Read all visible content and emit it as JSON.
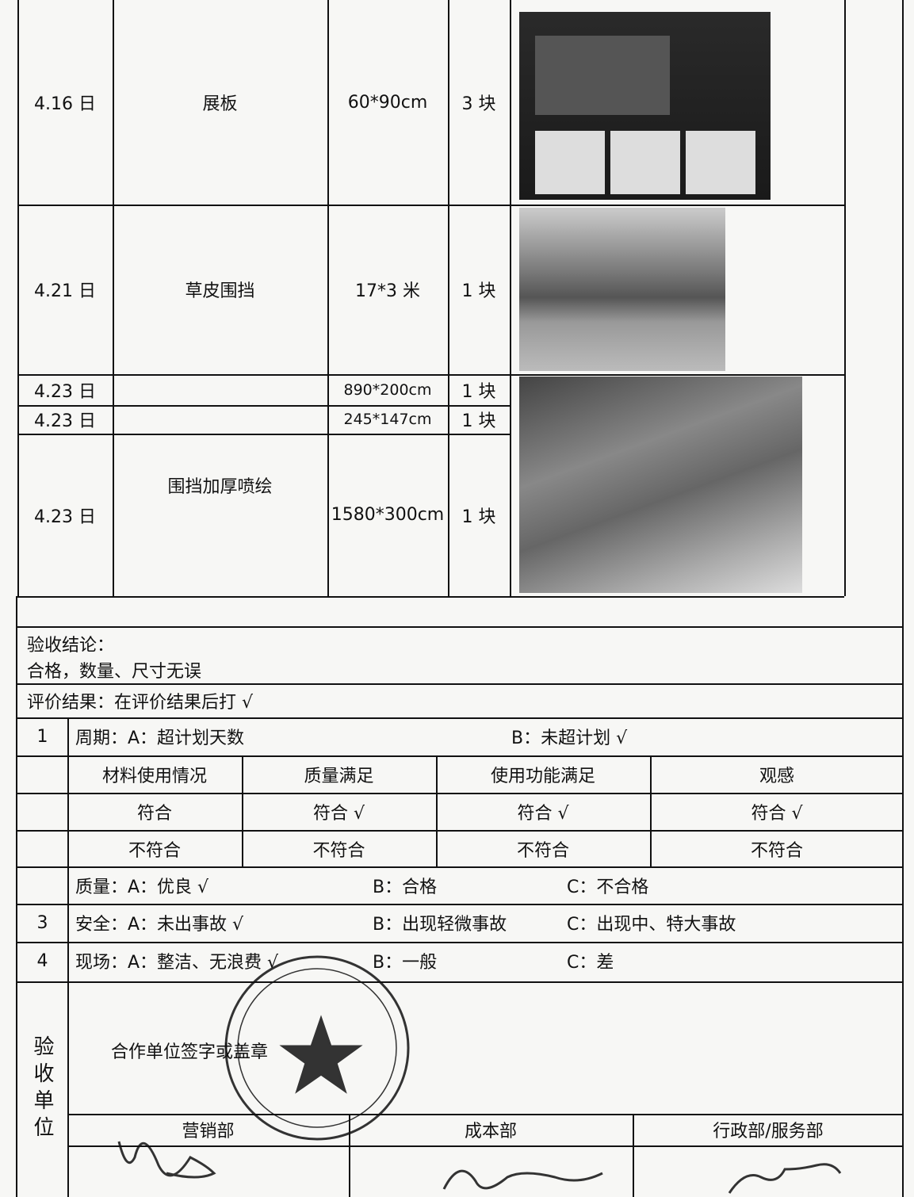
{
  "items_table": {
    "rows": [
      {
        "date": "4.16 日",
        "item": "展板",
        "size": "60*90cm",
        "quantity": "3 块"
      },
      {
        "date": "4.21 日",
        "item": "草皮围挡",
        "size": "17*3 米",
        "quantity": "1 块"
      },
      {
        "date": "4.23 日",
        "item": "围挡加厚喷绘",
        "size": "890*200cm",
        "quantity": "1 块"
      },
      {
        "date": "4.23 日",
        "size": "245*147cm",
        "quantity": "1 块"
      },
      {
        "date": "4.23 日",
        "size": "1580*300cm",
        "quantity": "1 块"
      }
    ]
  },
  "acceptance": {
    "conclusion_label": "验收结论：",
    "conclusion": "合格，数量、尺寸无误",
    "evaluation_note": "评价结果：在评价结果后打 √"
  },
  "evaluation": {
    "cycle": {
      "number": "1",
      "a": "周期：A：超计划天数",
      "b": "B：未超计划 √"
    },
    "criteria": {
      "headers": [
        "材料使用情况",
        "质量满足",
        "使用功能满足",
        "观感"
      ],
      "conform": [
        "符合",
        "符合 √",
        "符合 √",
        "符合 √"
      ],
      "nonconform": [
        "不符合",
        "不符合",
        "不符合",
        "不符合"
      ]
    },
    "quality": {
      "a": "质量：A：优良 √",
      "b": "B：合格",
      "c": "C：不合格"
    },
    "safety": {
      "number": "3",
      "a": "安全：A：未出事故 √",
      "b": "B：出现轻微事故",
      "c": "C：出现中、特大事故"
    },
    "site": {
      "number": "4",
      "a": "现场：A：整洁、无浪费 √",
      "b": "B：一般",
      "c": "C：差"
    }
  },
  "signoff": {
    "label": "验收单位",
    "cooperator": "合作单位签字或盖章",
    "departments": [
      "营销部",
      "成本部",
      "行政部/服务部"
    ]
  }
}
